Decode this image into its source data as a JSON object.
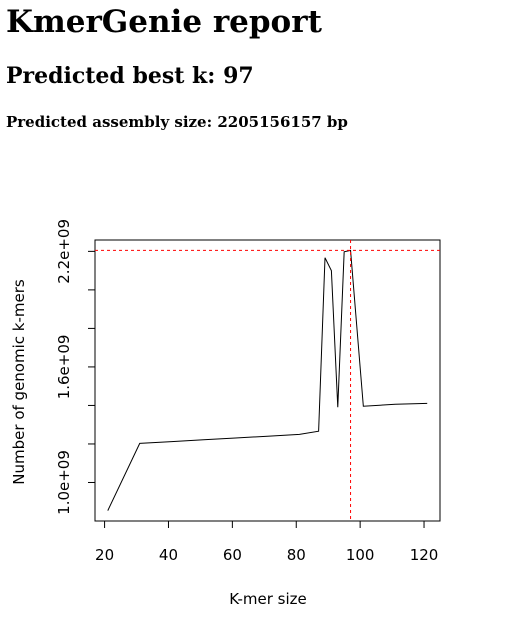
{
  "header": {
    "title": "KmerGenie report",
    "best_k": "Predicted best k: 97",
    "assembly_size": "Predicted assembly size: 2205156157 bp"
  },
  "chart_data": {
    "type": "line",
    "xlabel": "K-mer size",
    "ylabel": "Number of genomic k-mers",
    "x": [
      21,
      31,
      41,
      51,
      61,
      71,
      81,
      87,
      89,
      91,
      93,
      95,
      97,
      101,
      111,
      121
    ],
    "series": [
      {
        "color": "#000000",
        "values": [
          854000000,
          1203000000,
          1212000000,
          1222000000,
          1231000000,
          1240000000,
          1250000000,
          1266000000,
          2167000000,
          2100000000,
          1391000000,
          2198000000,
          2205000000,
          1396000000,
          1406000000,
          1411000000
        ]
      }
    ],
    "xlim": [
      17,
      125
    ],
    "xticks": [
      20,
      40,
      60,
      80,
      100,
      120
    ],
    "ylim": [
      800000000,
      2259000000
    ],
    "yticks": [
      {
        "value": 1000000000,
        "label": "1.0e+09"
      },
      {
        "value": 1200000000,
        "label": null
      },
      {
        "value": 1400000000,
        "label": null
      },
      {
        "value": 1600000000,
        "label": "1.6e+09"
      },
      {
        "value": 1800000000,
        "label": null
      },
      {
        "value": 2000000000,
        "label": null
      },
      {
        "value": 2200000000,
        "label": "2.2e+09"
      }
    ],
    "hline": 2205156157,
    "vline": 97,
    "ref_color": "#ff0000"
  }
}
